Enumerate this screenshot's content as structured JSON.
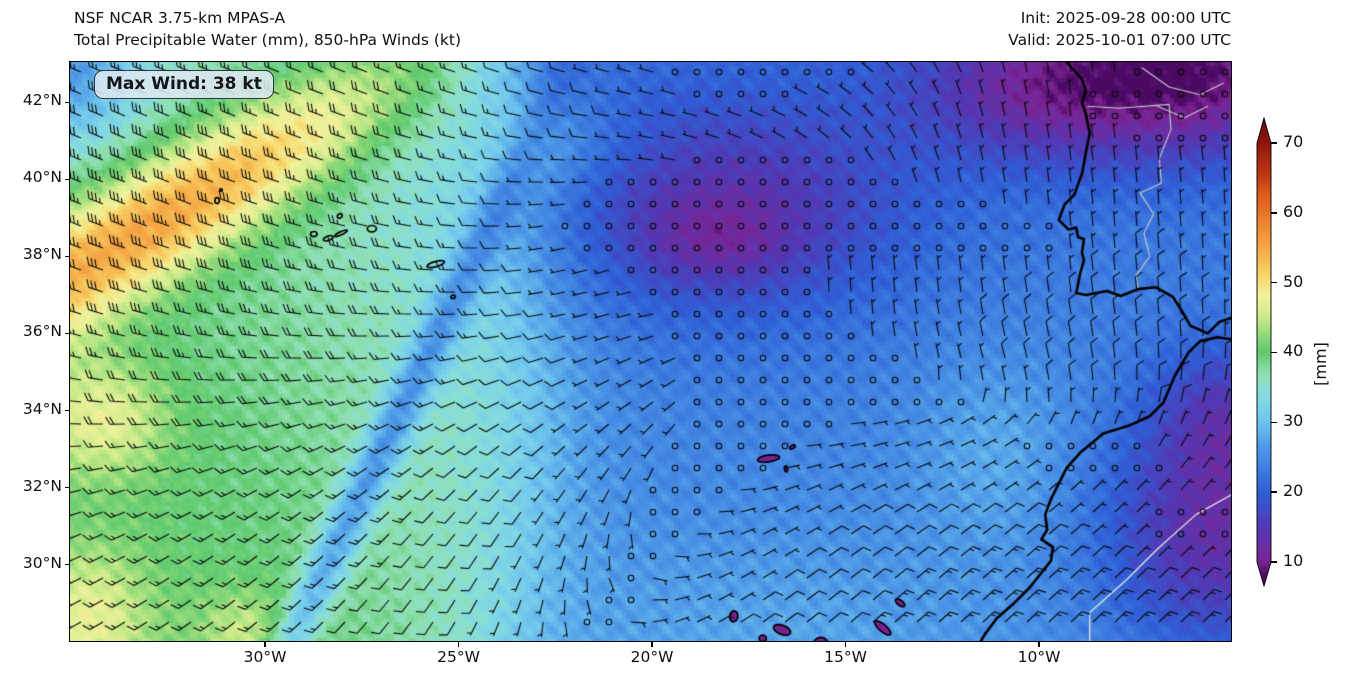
{
  "header": {
    "title_line1": "NSF NCAR 3.75-km MPAS-A",
    "title_line2": "Total Precipitable Water (mm), 850-hPa Winds (kt)",
    "init_label": "Init: 2025-09-28 00:00 UTC",
    "valid_label": "Valid: 2025-10-01 07:00 UTC"
  },
  "map": {
    "max_wind_badge": "Max Wind: 38 kt",
    "x_tick_labels": [
      "30°W",
      "25°W",
      "20°W",
      "15°W",
      "10°W"
    ],
    "y_tick_labels": [
      "42°N",
      "40°N",
      "38°N",
      "36°N",
      "34°N",
      "32°N",
      "30°N"
    ],
    "coastline_color": "#000000",
    "border_line_color": "#c8c8c8",
    "island_fill_color": "#7a2191",
    "barb_color": "#0a0a0a"
  },
  "colorbar": {
    "tick_labels": [
      "70",
      "60",
      "50",
      "40",
      "30",
      "20",
      "10"
    ],
    "tick_values": [
      70,
      60,
      50,
      40,
      30,
      20,
      10
    ],
    "unit_label": "[mm]",
    "gradient_stops": [
      {
        "value": 8,
        "color": "#4a0a63"
      },
      {
        "value": 10,
        "color": "#7a2191"
      },
      {
        "value": 12,
        "color": "#6b2da1"
      },
      {
        "value": 15,
        "color": "#5138b4"
      },
      {
        "value": 18,
        "color": "#3c4fc8"
      },
      {
        "value": 20,
        "color": "#2f5ed6"
      },
      {
        "value": 23,
        "color": "#3b79de"
      },
      {
        "value": 26,
        "color": "#4b94e6"
      },
      {
        "value": 29,
        "color": "#64b8ec"
      },
      {
        "value": 31,
        "color": "#74cbec"
      },
      {
        "value": 33,
        "color": "#80d7e4"
      },
      {
        "value": 35,
        "color": "#8adfd2"
      },
      {
        "value": 37,
        "color": "#8fdfb0"
      },
      {
        "value": 40,
        "color": "#5fca6e"
      },
      {
        "value": 42,
        "color": "#85d678"
      },
      {
        "value": 44,
        "color": "#b5e583"
      },
      {
        "value": 46,
        "color": "#daee91"
      },
      {
        "value": 48,
        "color": "#f0f19c"
      },
      {
        "value": 50,
        "color": "#f7e07a"
      },
      {
        "value": 52,
        "color": "#f8c95e"
      },
      {
        "value": 55,
        "color": "#f5a847"
      },
      {
        "value": 58,
        "color": "#ef8b34"
      },
      {
        "value": 60,
        "color": "#e87427"
      },
      {
        "value": 63,
        "color": "#d8571e"
      },
      {
        "value": 65,
        "color": "#c23e15"
      },
      {
        "value": 68,
        "color": "#a3240f"
      },
      {
        "value": 70,
        "color": "#8f150d"
      },
      {
        "value": 73,
        "color": "#6f0909"
      }
    ]
  }
}
